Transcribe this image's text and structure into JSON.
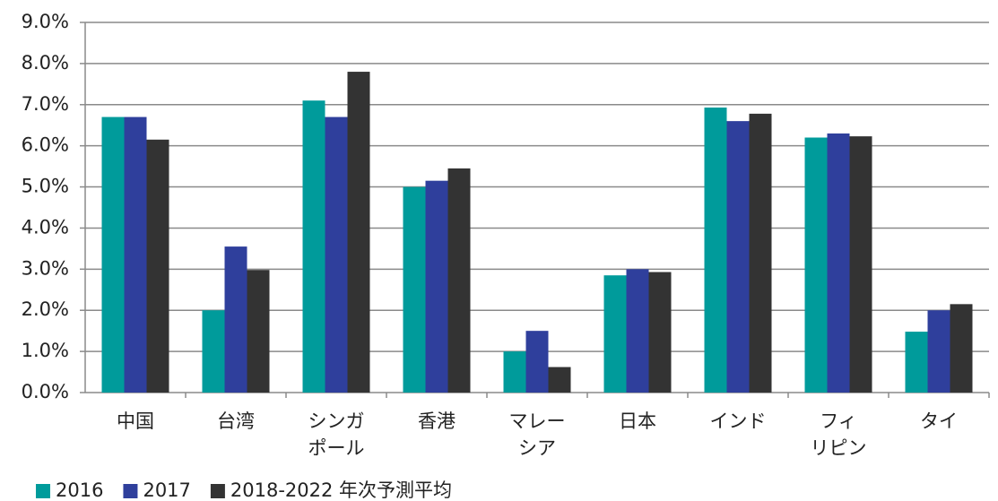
{
  "chart_data": {
    "type": "bar",
    "categories": [
      "中国",
      "台湾",
      "シンガ\nポール",
      "香港",
      "マレー\nシア",
      "日本",
      "インド",
      "フィ\nリピン",
      "タイ"
    ],
    "series": [
      {
        "name": "2016",
        "color": "#009b9b",
        "values": [
          6.7,
          2.0,
          7.1,
          5.0,
          1.0,
          2.85,
          6.93,
          6.2,
          1.48
        ]
      },
      {
        "name": "2017",
        "color": "#2f3f9c",
        "values": [
          6.7,
          3.55,
          6.7,
          5.15,
          1.5,
          3.0,
          6.6,
          6.3,
          2.0
        ]
      },
      {
        "name": "2018-2022 年次予測平均",
        "color": "#333333",
        "values": [
          6.15,
          2.98,
          7.8,
          5.45,
          0.62,
          2.93,
          6.78,
          6.23,
          2.15
        ]
      }
    ],
    "ylim": [
      0,
      9
    ],
    "yticks": [
      {
        "value": 0,
        "label": "0.0%"
      },
      {
        "value": 1,
        "label": "1.0%"
      },
      {
        "value": 2,
        "label": "2.0%"
      },
      {
        "value": 3,
        "label": "3.0%"
      },
      {
        "value": 4,
        "label": "4.0%"
      },
      {
        "value": 5,
        "label": "5.0%"
      },
      {
        "value": 6,
        "label": "6.0%"
      },
      {
        "value": 7,
        "label": "7.0%"
      },
      {
        "value": 8,
        "label": "8.0%"
      },
      {
        "value": 9,
        "label": "9.0%"
      }
    ],
    "grid": true,
    "legend": "bottom"
  }
}
